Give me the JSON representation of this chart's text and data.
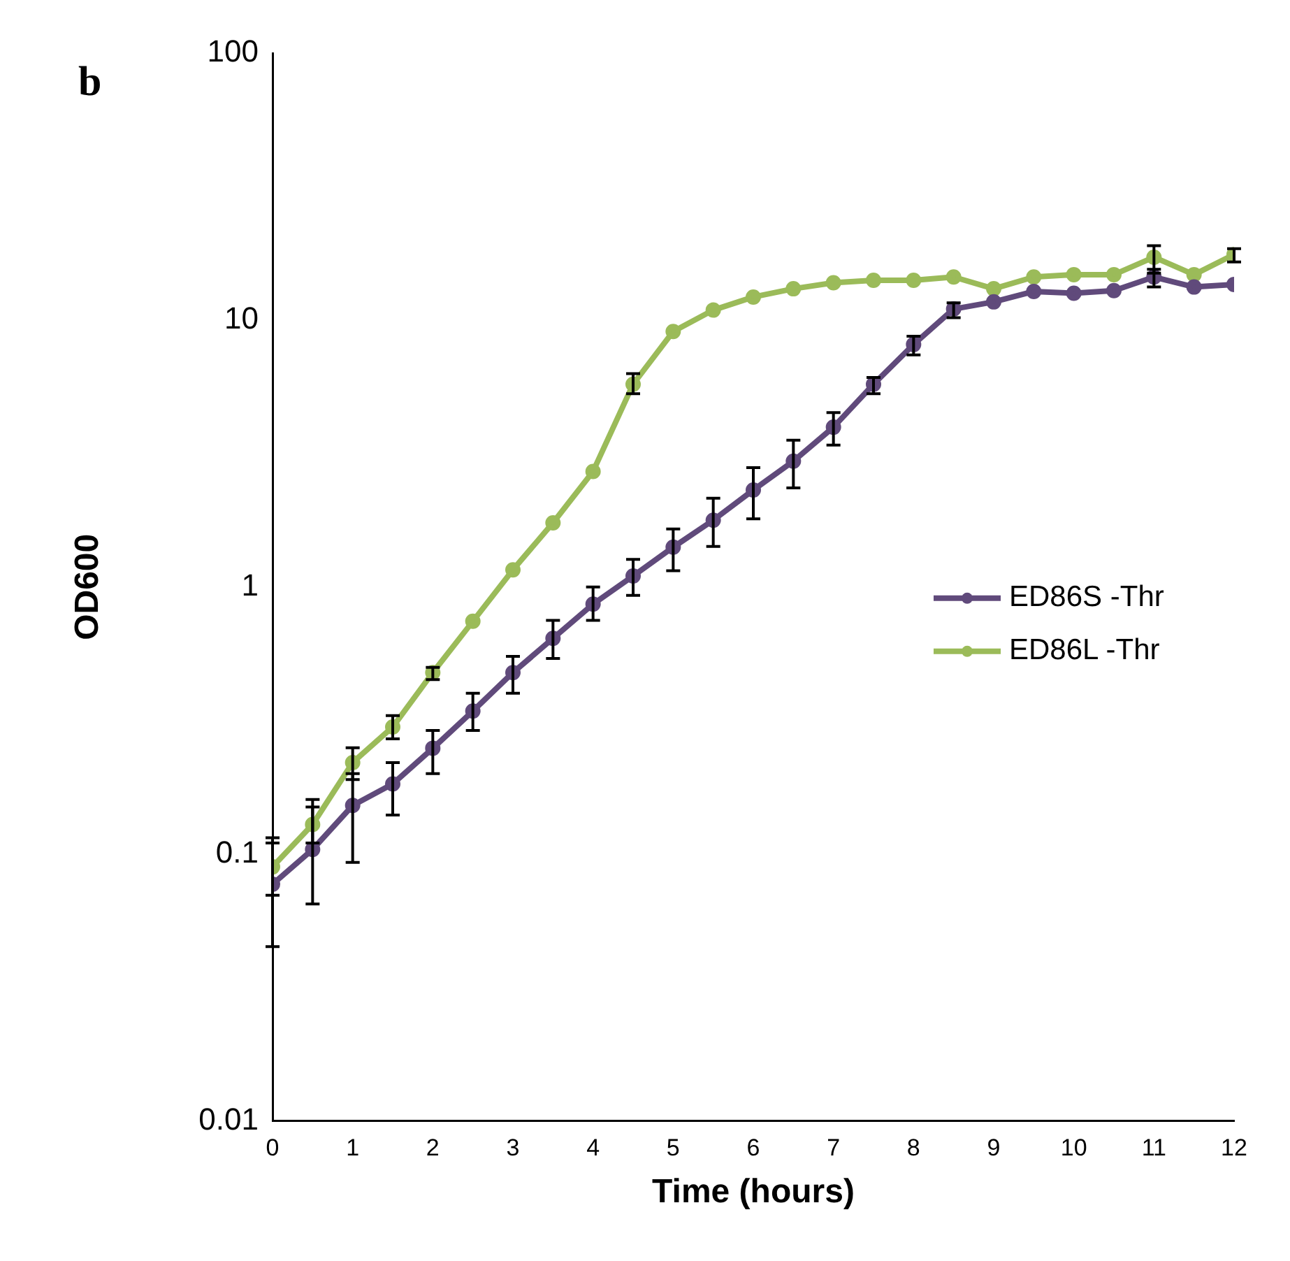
{
  "chart_data": {
    "type": "line",
    "title": "b",
    "xlabel": "Time (hours)",
    "ylabel": "OD600",
    "x": [
      0,
      0.5,
      1,
      1.5,
      2,
      2.5,
      3,
      3.5,
      4,
      4.5,
      5,
      5.5,
      6,
      6.5,
      7,
      7.5,
      8,
      8.5,
      9,
      9.5,
      10,
      10.5,
      11,
      11.5,
      12
    ],
    "series": [
      {
        "name": "ED86S -Thr",
        "color": "#604a7b",
        "values": [
          0.077,
          0.104,
          0.152,
          0.183,
          0.249,
          0.343,
          0.478,
          0.642,
          0.863,
          1.1,
          1.41,
          1.78,
          2.31,
          2.96,
          3.97,
          5.75,
          8.1,
          11.0,
          11.7,
          12.8,
          12.6,
          12.9,
          14.5,
          13.3,
          13.6
        ],
        "errors": [
          [
            0.045,
            0.11
          ],
          [
            0.065,
            0.15
          ],
          [
            0.093,
            0.2
          ],
          [
            0.14,
            0.22
          ],
          [
            0.2,
            0.29
          ],
          [
            0.29,
            0.4
          ],
          [
            0.4,
            0.55
          ],
          [
            0.54,
            0.75
          ],
          [
            0.75,
            1.0
          ],
          [
            0.93,
            1.27
          ],
          [
            1.15,
            1.65
          ],
          [
            1.42,
            2.15
          ],
          [
            1.8,
            2.8
          ],
          [
            2.35,
            3.55
          ],
          [
            3.4,
            4.5
          ],
          [
            5.3,
            6.1
          ],
          [
            7.4,
            8.7
          ],
          [
            10.2,
            11.6
          ],
          null,
          null,
          null,
          null,
          [
            13.3,
            15.5
          ],
          null,
          null
        ]
      },
      {
        "name": "ED86L -Thr",
        "color": "#9bbb59",
        "values": [
          0.0895,
          0.129,
          0.22,
          0.299,
          0.478,
          0.744,
          1.16,
          1.74,
          2.71,
          5.75,
          9.06,
          10.9,
          12.2,
          13.1,
          13.8,
          14.1,
          14.1,
          14.5,
          13.1,
          14.5,
          14.8,
          14.8,
          17.2,
          14.8,
          17.6
        ],
        "errors": [
          [
            0.07,
            0.115
          ],
          [
            0.11,
            0.16
          ],
          [
            0.19,
            0.25
          ],
          [
            0.27,
            0.33
          ],
          [
            0.45,
            0.5
          ],
          null,
          null,
          null,
          null,
          [
            5.3,
            6.3
          ],
          null,
          null,
          null,
          null,
          null,
          null,
          null,
          null,
          null,
          null,
          null,
          null,
          [
            15,
            19
          ],
          null,
          [
            16.5,
            18.5
          ]
        ]
      }
    ],
    "log": "y",
    "xlim": [
      0,
      12
    ],
    "xticks": [
      0,
      1,
      2,
      3,
      4,
      5,
      6,
      7,
      8,
      9,
      10,
      11,
      12
    ],
    "ylim": [
      0.01,
      100
    ],
    "yticks": [
      0.01,
      0.1,
      1,
      10,
      100
    ],
    "grid": false,
    "legend": "right",
    "marker": "circle",
    "line_style": "solid"
  }
}
